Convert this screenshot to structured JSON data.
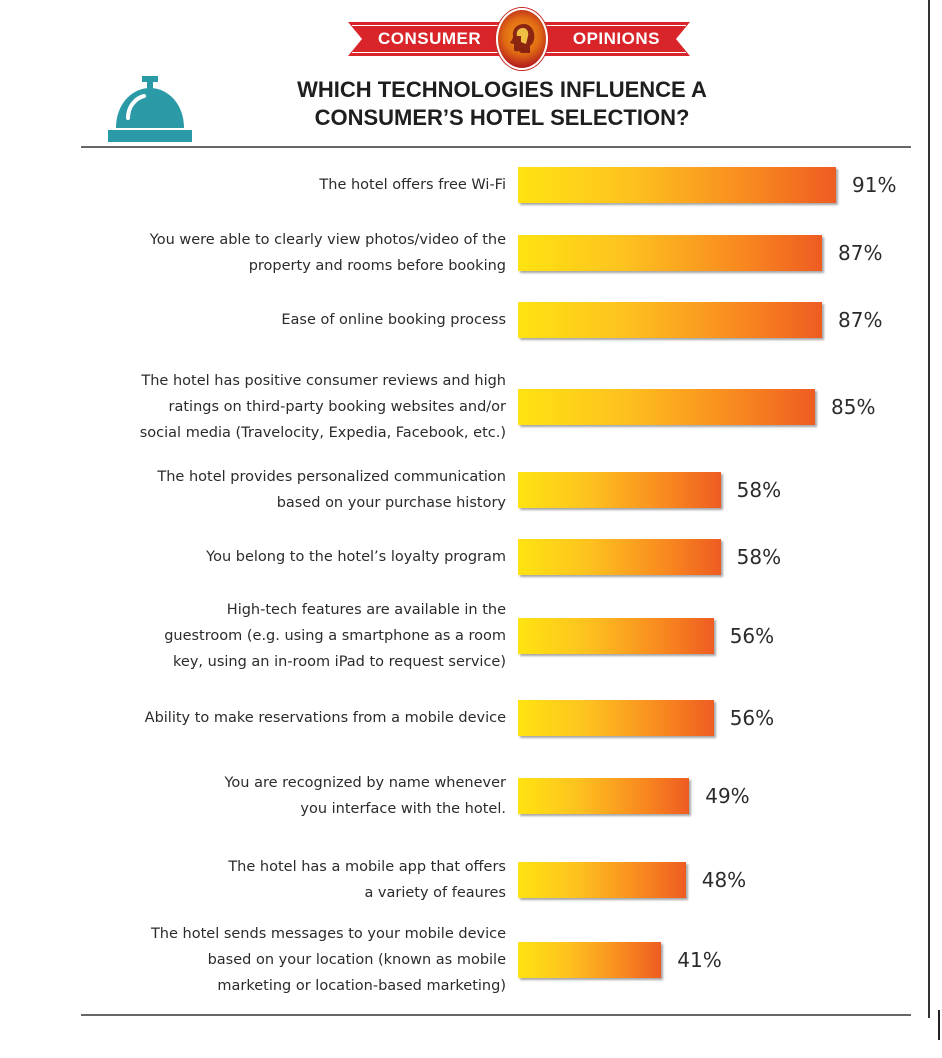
{
  "banner": {
    "left_text": "CONSUMER",
    "right_text": "OPINIONS"
  },
  "icons": {
    "bell": "service-bell-icon",
    "banner_logo": "consumer-head-icon"
  },
  "colors": {
    "banner_red": "#d9252a",
    "bell_teal": "#2a9aa6",
    "bar_start": "#ffe311",
    "bar_end": "#ee5c22"
  },
  "chart_data": {
    "type": "bar",
    "orientation": "horizontal",
    "title": "WHICH TECHNOLOGIES INFLUENCE A CONSUMER'S HOTEL SELECTION?",
    "title_lines": [
      "WHICH TECHNOLOGIES INFLUENCE A",
      "CONSUMER’S HOTEL SELECTION?"
    ],
    "xlabel": "",
    "ylabel": "",
    "value_suffix": "%",
    "xlim": [
      0,
      100
    ],
    "grid": false,
    "categories": [
      [
        "The hotel offers free Wi-Fi"
      ],
      [
        "You were able to clearly view photos/video of the",
        "property and rooms before booking"
      ],
      [
        "Ease of online booking process"
      ],
      [
        "The hotel has positive consumer reviews and high",
        "ratings on third-party booking websites and/or",
        "social media (Travelocity, Expedia, Facebook, etc.)"
      ],
      [
        "The hotel provides personalized communication",
        "based on your purchase history"
      ],
      [
        "You belong to the hotel’s loyalty program"
      ],
      [
        "High-tech features are available in the",
        "guestroom (e.g. using a smartphone as a room",
        "key, using an in-room iPad to request service)"
      ],
      [
        "Ability to make reservations from a mobile device"
      ],
      [
        "You are recognized by name whenever",
        "you interface with the hotel."
      ],
      [
        "The hotel has a mobile app that offers",
        "a variety of feaures"
      ],
      [
        "The hotel sends messages to your mobile device",
        "based on your location (known as mobile",
        "marketing or location-based marketing)"
      ]
    ],
    "values": [
      91,
      87,
      87,
      85,
      58,
      58,
      56,
      56,
      49,
      48,
      41
    ],
    "value_labels": [
      "91%",
      "87%",
      "87%",
      "85%",
      "58%",
      "58%",
      "56%",
      "56%",
      "49%",
      "48%",
      "41%"
    ]
  }
}
